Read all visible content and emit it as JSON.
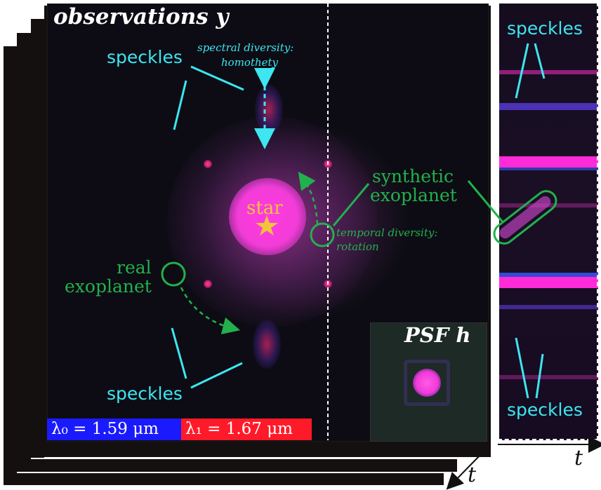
{
  "title": "observations y",
  "psf_label": "PSF h",
  "speckles_top": "speckles",
  "speckles_bottom": "speckles",
  "speckles_side_top": "speckles",
  "speckles_side_bottom": "speckles",
  "spectral_diversity": "spectral diversity:",
  "homothety": "homothety",
  "star": "star",
  "synthetic_line1": "synthetic",
  "synthetic_line2": "exoplanet",
  "real_line1": "real",
  "real_line2": "exoplanet",
  "temporal_diversity": "temporal diversity:",
  "rotation": "rotation",
  "lambda0": "λ₀ = 1.59 μm",
  "lambda1": "λ₁ = 1.67 μm",
  "axis_t_right": "t",
  "axis_t_bottom": "t",
  "colors": {
    "speckle_cyan": "#3de6f0",
    "exoplanet_green": "#22b14c",
    "star_yellow": "#f2c43c",
    "lambda0_blue": "#1a1aff",
    "lambda1_red": "#ff1a2a",
    "star_magenta": "#ff3ae0"
  }
}
